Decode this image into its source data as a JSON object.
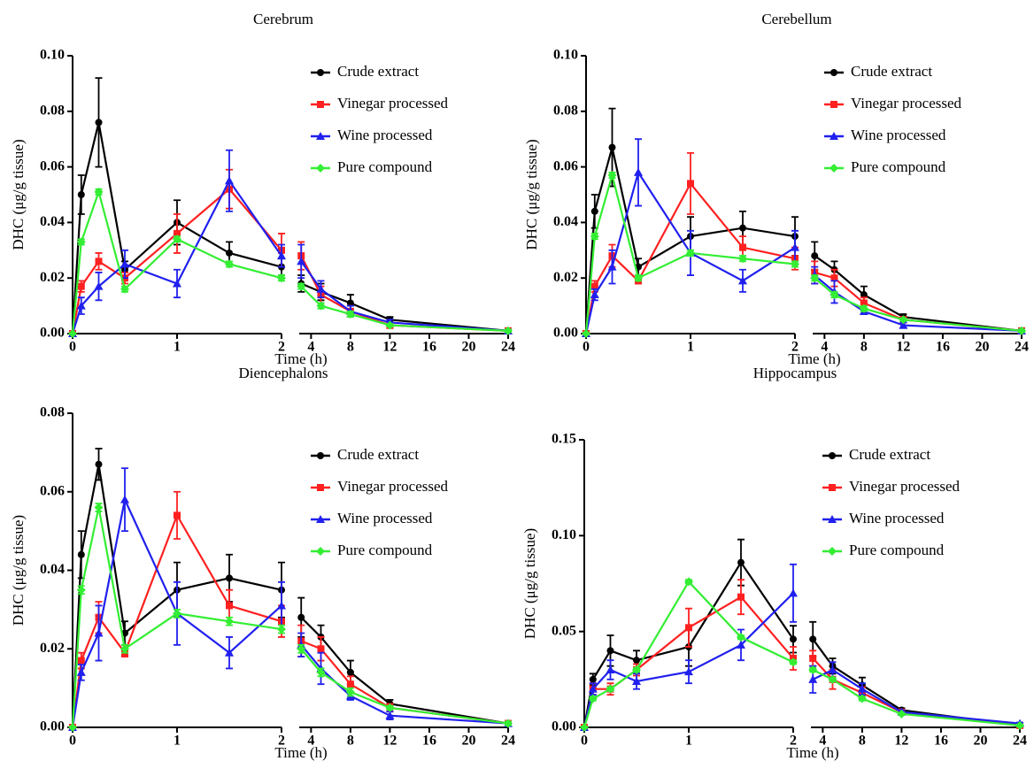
{
  "chart_data": [
    {
      "type": "line",
      "title": "Cerebrum",
      "xlabel": "Time (h)",
      "ylabel": "DHC (μg/g tissue)",
      "ylim": [
        0,
        0.1
      ],
      "yticks": [
        {
          "value": 0,
          "label": "0.00"
        },
        {
          "value": 0.02,
          "label": "0.02"
        },
        {
          "value": 0.04,
          "label": "0.04"
        },
        {
          "value": 0.06,
          "label": "0.06"
        },
        {
          "value": 0.08,
          "label": "0.08"
        },
        {
          "value": 0.1,
          "label": "0.10"
        }
      ],
      "x_segments": [
        {
          "xlim": [
            0,
            2
          ],
          "xticks": [
            0,
            1,
            2
          ]
        },
        {
          "xlim": [
            2.8,
            24
          ],
          "xticks": [
            4,
            8,
            12,
            16,
            20,
            24
          ]
        }
      ],
      "x": [
        0,
        0.083,
        0.25,
        0.5,
        1,
        1.5,
        2,
        3,
        5,
        8,
        12,
        24
      ],
      "series": [
        {
          "name": "Crude extract",
          "color": "#000000",
          "marker": "circle",
          "values": [
            0,
            0.05,
            0.076,
            0.023,
            0.04,
            0.029,
            0.024,
            0.018,
            0.015,
            0.011,
            0.005,
            0.001
          ],
          "errors": [
            0,
            0.007,
            0.016,
            0.003,
            0.008,
            0.004,
            0.003,
            0.003,
            0.003,
            0.003,
            0.001,
            0.0005
          ]
        },
        {
          "name": "Vinegar processed",
          "color": "#ff2020",
          "marker": "square",
          "values": [
            0,
            0.017,
            0.026,
            0.02,
            0.036,
            0.052,
            0.03,
            0.028,
            0.014,
            0.008,
            0.003,
            0.001
          ],
          "errors": [
            0,
            0.002,
            0.003,
            0.002,
            0.007,
            0.007,
            0.006,
            0.005,
            0.003,
            0.002,
            0.001,
            0.0005
          ]
        },
        {
          "name": "Wine processed",
          "color": "#2020ee",
          "marker": "triangle",
          "values": [
            0,
            0.01,
            0.017,
            0.025,
            0.018,
            0.055,
            0.028,
            0.026,
            0.016,
            0.008,
            0.004,
            0.001
          ],
          "errors": [
            0,
            0.003,
            0.005,
            0.005,
            0.005,
            0.011,
            0.004,
            0.006,
            0.003,
            0.002,
            0.001,
            0.0005
          ]
        },
        {
          "name": "Pure compound",
          "color": "#33ee33",
          "marker": "diamond",
          "values": [
            0,
            0.033,
            0.051,
            0.016,
            0.034,
            0.025,
            0.02,
            0.017,
            0.01,
            0.007,
            0.003,
            0.001
          ],
          "errors": [
            0,
            0.001,
            0.001,
            0.001,
            0.001,
            0.001,
            0.001,
            0.001,
            0.001,
            0.001,
            0.0005,
            0.0005
          ]
        }
      ]
    },
    {
      "type": "line",
      "title": "Cerebellum",
      "xlabel": "Time (h)",
      "ylabel": "DHC (μg/g tissue)",
      "ylim": [
        0,
        0.1
      ],
      "yticks": [
        {
          "value": 0,
          "label": "0.00"
        },
        {
          "value": 0.02,
          "label": "0.02"
        },
        {
          "value": 0.04,
          "label": "0.04"
        },
        {
          "value": 0.06,
          "label": "0.06"
        },
        {
          "value": 0.08,
          "label": "0.08"
        },
        {
          "value": 0.1,
          "label": "0.10"
        }
      ],
      "x_segments": [
        {
          "xlim": [
            0,
            2
          ],
          "xticks": [
            0,
            1,
            2
          ]
        },
        {
          "xlim": [
            2.8,
            24
          ],
          "xticks": [
            4,
            8,
            12,
            16,
            20,
            24
          ]
        }
      ],
      "x": [
        0,
        0.083,
        0.25,
        0.5,
        1,
        1.5,
        2,
        3,
        5,
        8,
        12,
        24
      ],
      "series": [
        {
          "name": "Crude extract",
          "color": "#000000",
          "marker": "circle",
          "values": [
            0,
            0.044,
            0.067,
            0.024,
            0.035,
            0.038,
            0.035,
            0.028,
            0.023,
            0.014,
            0.006,
            0.001
          ],
          "errors": [
            0,
            0.006,
            0.014,
            0.003,
            0.007,
            0.006,
            0.007,
            0.005,
            0.003,
            0.003,
            0.001,
            0.0005
          ]
        },
        {
          "name": "Vinegar processed",
          "color": "#ff2020",
          "marker": "square",
          "values": [
            0,
            0.017,
            0.028,
            0.019,
            0.054,
            0.031,
            0.027,
            0.022,
            0.02,
            0.011,
            0.005,
            0.001
          ],
          "errors": [
            0,
            0.002,
            0.004,
            0.001,
            0.011,
            0.004,
            0.004,
            0.004,
            0.003,
            0.002,
            0.001,
            0.0005
          ]
        },
        {
          "name": "Wine processed",
          "color": "#2020ee",
          "marker": "triangle",
          "values": [
            0,
            0.014,
            0.024,
            0.058,
            0.029,
            0.019,
            0.031,
            0.021,
            0.015,
            0.008,
            0.003,
            0.001
          ],
          "errors": [
            0,
            0.002,
            0.006,
            0.012,
            0.008,
            0.004,
            0.006,
            0.003,
            0.004,
            0.001,
            0.001,
            0.0005
          ]
        },
        {
          "name": "Pure compound",
          "color": "#33ee33",
          "marker": "diamond",
          "values": [
            0,
            0.035,
            0.057,
            0.02,
            0.029,
            0.027,
            0.025,
            0.02,
            0.014,
            0.009,
            0.005,
            0.001
          ],
          "errors": [
            0,
            0.001,
            0.001,
            0.001,
            0.001,
            0.001,
            0.001,
            0.001,
            0.001,
            0.001,
            0.0005,
            0.0005
          ]
        }
      ]
    },
    {
      "type": "line",
      "title": "Diencephalons",
      "xlabel": "Time (h)",
      "ylabel": "DHC (μg/g tissue)",
      "ylim": [
        0,
        0.08
      ],
      "yticks": [
        {
          "value": 0,
          "label": "0.00"
        },
        {
          "value": 0.02,
          "label": "0.02"
        },
        {
          "value": 0.04,
          "label": "0.04"
        },
        {
          "value": 0.06,
          "label": "0.06"
        },
        {
          "value": 0.08,
          "label": "0.08"
        }
      ],
      "x_segments": [
        {
          "xlim": [
            0,
            2
          ],
          "xticks": [
            0,
            1,
            2
          ]
        },
        {
          "xlim": [
            2.8,
            24
          ],
          "xticks": [
            4,
            8,
            12,
            16,
            20,
            24
          ]
        }
      ],
      "x": [
        0,
        0.083,
        0.25,
        0.5,
        1,
        1.5,
        2,
        3,
        5,
        8,
        12,
        24
      ],
      "series": [
        {
          "name": "Crude extract",
          "color": "#000000",
          "marker": "circle",
          "values": [
            0,
            0.044,
            0.067,
            0.024,
            0.035,
            0.038,
            0.035,
            0.028,
            0.023,
            0.014,
            0.006,
            0.001
          ],
          "errors": [
            0,
            0.006,
            0.004,
            0.003,
            0.007,
            0.006,
            0.007,
            0.005,
            0.003,
            0.003,
            0.001,
            0.0005
          ]
        },
        {
          "name": "Vinegar processed",
          "color": "#ff2020",
          "marker": "square",
          "values": [
            0,
            0.017,
            0.028,
            0.019,
            0.054,
            0.031,
            0.027,
            0.022,
            0.02,
            0.011,
            0.005,
            0.001
          ],
          "errors": [
            0,
            0.002,
            0.004,
            0.001,
            0.006,
            0.004,
            0.004,
            0.004,
            0.003,
            0.002,
            0.001,
            0.0005
          ]
        },
        {
          "name": "Wine processed",
          "color": "#2020ee",
          "marker": "triangle",
          "values": [
            0,
            0.014,
            0.024,
            0.058,
            0.029,
            0.019,
            0.031,
            0.021,
            0.015,
            0.008,
            0.003,
            0.001
          ],
          "errors": [
            0,
            0.002,
            0.007,
            0.008,
            0.008,
            0.004,
            0.006,
            0.003,
            0.004,
            0.001,
            0.001,
            0.0005
          ]
        },
        {
          "name": "Pure compound",
          "color": "#33ee33",
          "marker": "diamond",
          "values": [
            0,
            0.035,
            0.056,
            0.02,
            0.029,
            0.027,
            0.025,
            0.02,
            0.014,
            0.009,
            0.005,
            0.001
          ],
          "errors": [
            0,
            0.001,
            0.001,
            0.001,
            0.001,
            0.001,
            0.001,
            0.001,
            0.001,
            0.001,
            0.0005,
            0.0005
          ]
        }
      ]
    },
    {
      "type": "line",
      "title": "Hippocampus",
      "xlabel": "Time (h)",
      "ylabel": "DHC (μg/g tissue)",
      "ylim": [
        0,
        0.15
      ],
      "yticks": [
        {
          "value": 0,
          "label": "0.00"
        },
        {
          "value": 0.05,
          "label": "0.05"
        },
        {
          "value": 0.1,
          "label": "0.10"
        },
        {
          "value": 0.15,
          "label": "0.15"
        }
      ],
      "x_segments": [
        {
          "xlim": [
            0,
            2
          ],
          "xticks": [
            0,
            1,
            2
          ]
        },
        {
          "xlim": [
            2.8,
            24
          ],
          "xticks": [
            4,
            8,
            12,
            16,
            20,
            24
          ]
        }
      ],
      "x": [
        0,
        0.083,
        0.25,
        0.5,
        1,
        1.5,
        2,
        3,
        5,
        8,
        12,
        24
      ],
      "series": [
        {
          "name": "Crude extract",
          "color": "#000000",
          "marker": "circle",
          "values": [
            0,
            0.025,
            0.04,
            0.035,
            0.042,
            0.086,
            0.046,
            0.046,
            0.032,
            0.022,
            0.009,
            0.001
          ],
          "errors": [
            0,
            0.003,
            0.008,
            0.005,
            0.01,
            0.012,
            0.007,
            0.009,
            0.004,
            0.004,
            0.001,
            0.0005
          ]
        },
        {
          "name": "Vinegar processed",
          "color": "#ff2020",
          "marker": "square",
          "values": [
            0,
            0.02,
            0.02,
            0.03,
            0.052,
            0.068,
            0.036,
            0.036,
            0.025,
            0.018,
            0.008,
            0.001
          ],
          "errors": [
            0,
            0.003,
            0.003,
            0.003,
            0.01,
            0.009,
            0.006,
            0.004,
            0.005,
            0.003,
            0.001,
            0.0005
          ]
        },
        {
          "name": "Wine processed",
          "color": "#2020ee",
          "marker": "triangle",
          "values": [
            0,
            0.02,
            0.03,
            0.024,
            0.029,
            0.043,
            0.07,
            0.025,
            0.03,
            0.02,
            0.008,
            0.002
          ],
          "errors": [
            0,
            0.003,
            0.005,
            0.004,
            0.006,
            0.008,
            0.015,
            0.007,
            0.004,
            0.003,
            0.001,
            0.0005
          ]
        },
        {
          "name": "Pure compound",
          "color": "#33ee33",
          "marker": "diamond",
          "values": [
            0,
            0.015,
            0.02,
            0.03,
            0.076,
            0.047,
            0.034,
            0.03,
            0.025,
            0.015,
            0.007,
            0.001
          ],
          "errors": [
            0,
            0.001,
            0.001,
            0.001,
            0.001,
            0.001,
            0.001,
            0.001,
            0.001,
            0.001,
            0.0005,
            0.0005
          ]
        }
      ]
    }
  ]
}
